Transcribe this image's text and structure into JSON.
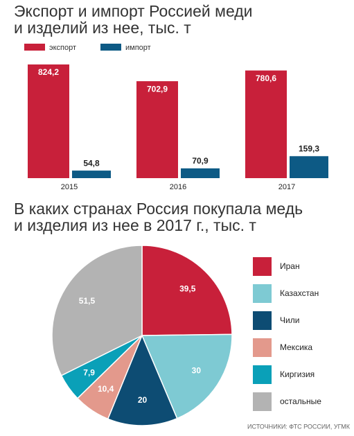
{
  "chart_data": [
    {
      "type": "bar",
      "title": [
        "Экспорт и импорт Россией меди",
        "и изделий из нее, тыс. т"
      ],
      "categories": [
        "2015",
        "2016",
        "2017"
      ],
      "series": [
        {
          "name": "экспорт",
          "color": "#c8203a",
          "values": [
            824.2,
            702.9,
            780.6
          ],
          "value_labels": [
            "824,2",
            "702,9",
            "780,6"
          ]
        },
        {
          "name": "импорт",
          "color": "#0d5a85",
          "values": [
            54.8,
            70.9,
            159.3
          ],
          "value_labels": [
            "54,8",
            "70,9",
            "159,3"
          ]
        }
      ]
    },
    {
      "type": "pie",
      "title": [
        "В каких странах Россия покупала медь",
        "и изделия из нее в 2017 г., тыс. т"
      ],
      "categories": [
        "Иран",
        "Казахстан",
        "Чили",
        "Мексика",
        "Киргизия",
        "остальные"
      ],
      "values": [
        39.5,
        30,
        20,
        10.4,
        7.9,
        51.5
      ],
      "value_labels": [
        "39,5",
        "30",
        "20",
        "10,4",
        "7,9",
        "51,5"
      ],
      "colors": [
        "#c8203a",
        "#7ecad3",
        "#0d4c73",
        "#e3998c",
        "#0aa0b8",
        "#b3b3b3"
      ],
      "source": "ИСТОЧНИКИ: ФТС РОССИИ, УГМК"
    }
  ]
}
